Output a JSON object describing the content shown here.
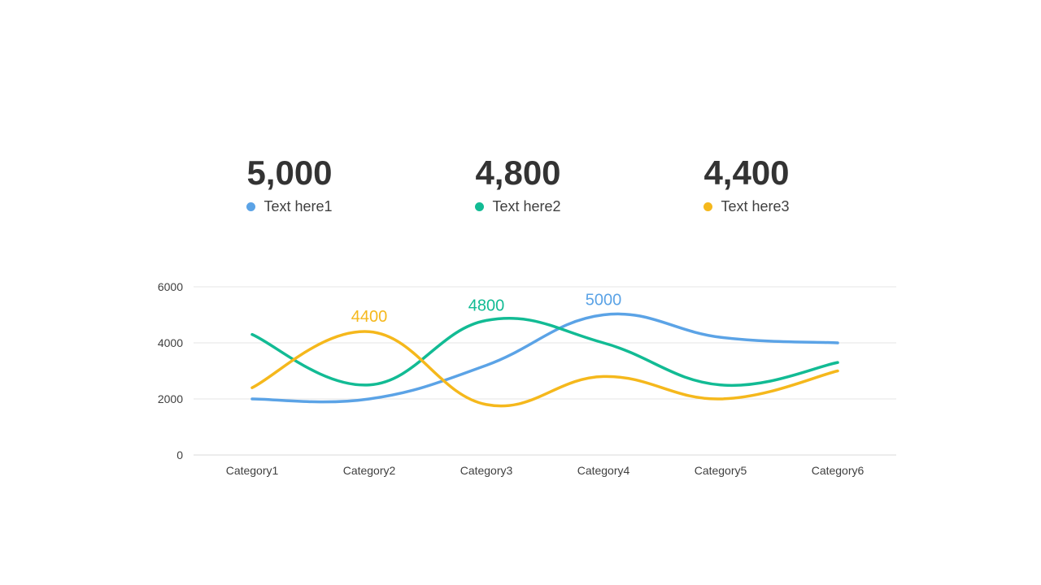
{
  "colors": {
    "blue": "#5BA3E6",
    "green": "#12BB94",
    "yellow": "#F5B81C",
    "text": "#333333",
    "grid": "#E6E6E6"
  },
  "stats": [
    {
      "value": "5,000",
      "label": "Text here1",
      "color": "#5BA3E6"
    },
    {
      "value": "4,800",
      "label": "Text here2",
      "color": "#12BB94"
    },
    {
      "value": "4,400",
      "label": "Text here3",
      "color": "#F5B81C"
    }
  ],
  "chart_data": {
    "type": "line",
    "categories": [
      "Category1",
      "Category2",
      "Category3",
      "Category4",
      "Category5",
      "Category6"
    ],
    "ylim": [
      0,
      6000
    ],
    "yticks": [
      0,
      2000,
      4000,
      6000
    ],
    "grid": true,
    "smooth": true,
    "series": [
      {
        "color": "#5BA3E6",
        "values": [
          2000,
          2000,
          3200,
          5000,
          4200,
          4000
        ],
        "label_index": 3,
        "label": "5000"
      },
      {
        "color": "#12BB94",
        "values": [
          4300,
          2500,
          4800,
          4000,
          2500,
          3300
        ],
        "label_index": 2,
        "label": "4800"
      },
      {
        "color": "#F5B81C",
        "values": [
          2400,
          4400,
          1800,
          2800,
          2000,
          3000
        ],
        "label_index": 1,
        "label": "4400"
      }
    ]
  }
}
